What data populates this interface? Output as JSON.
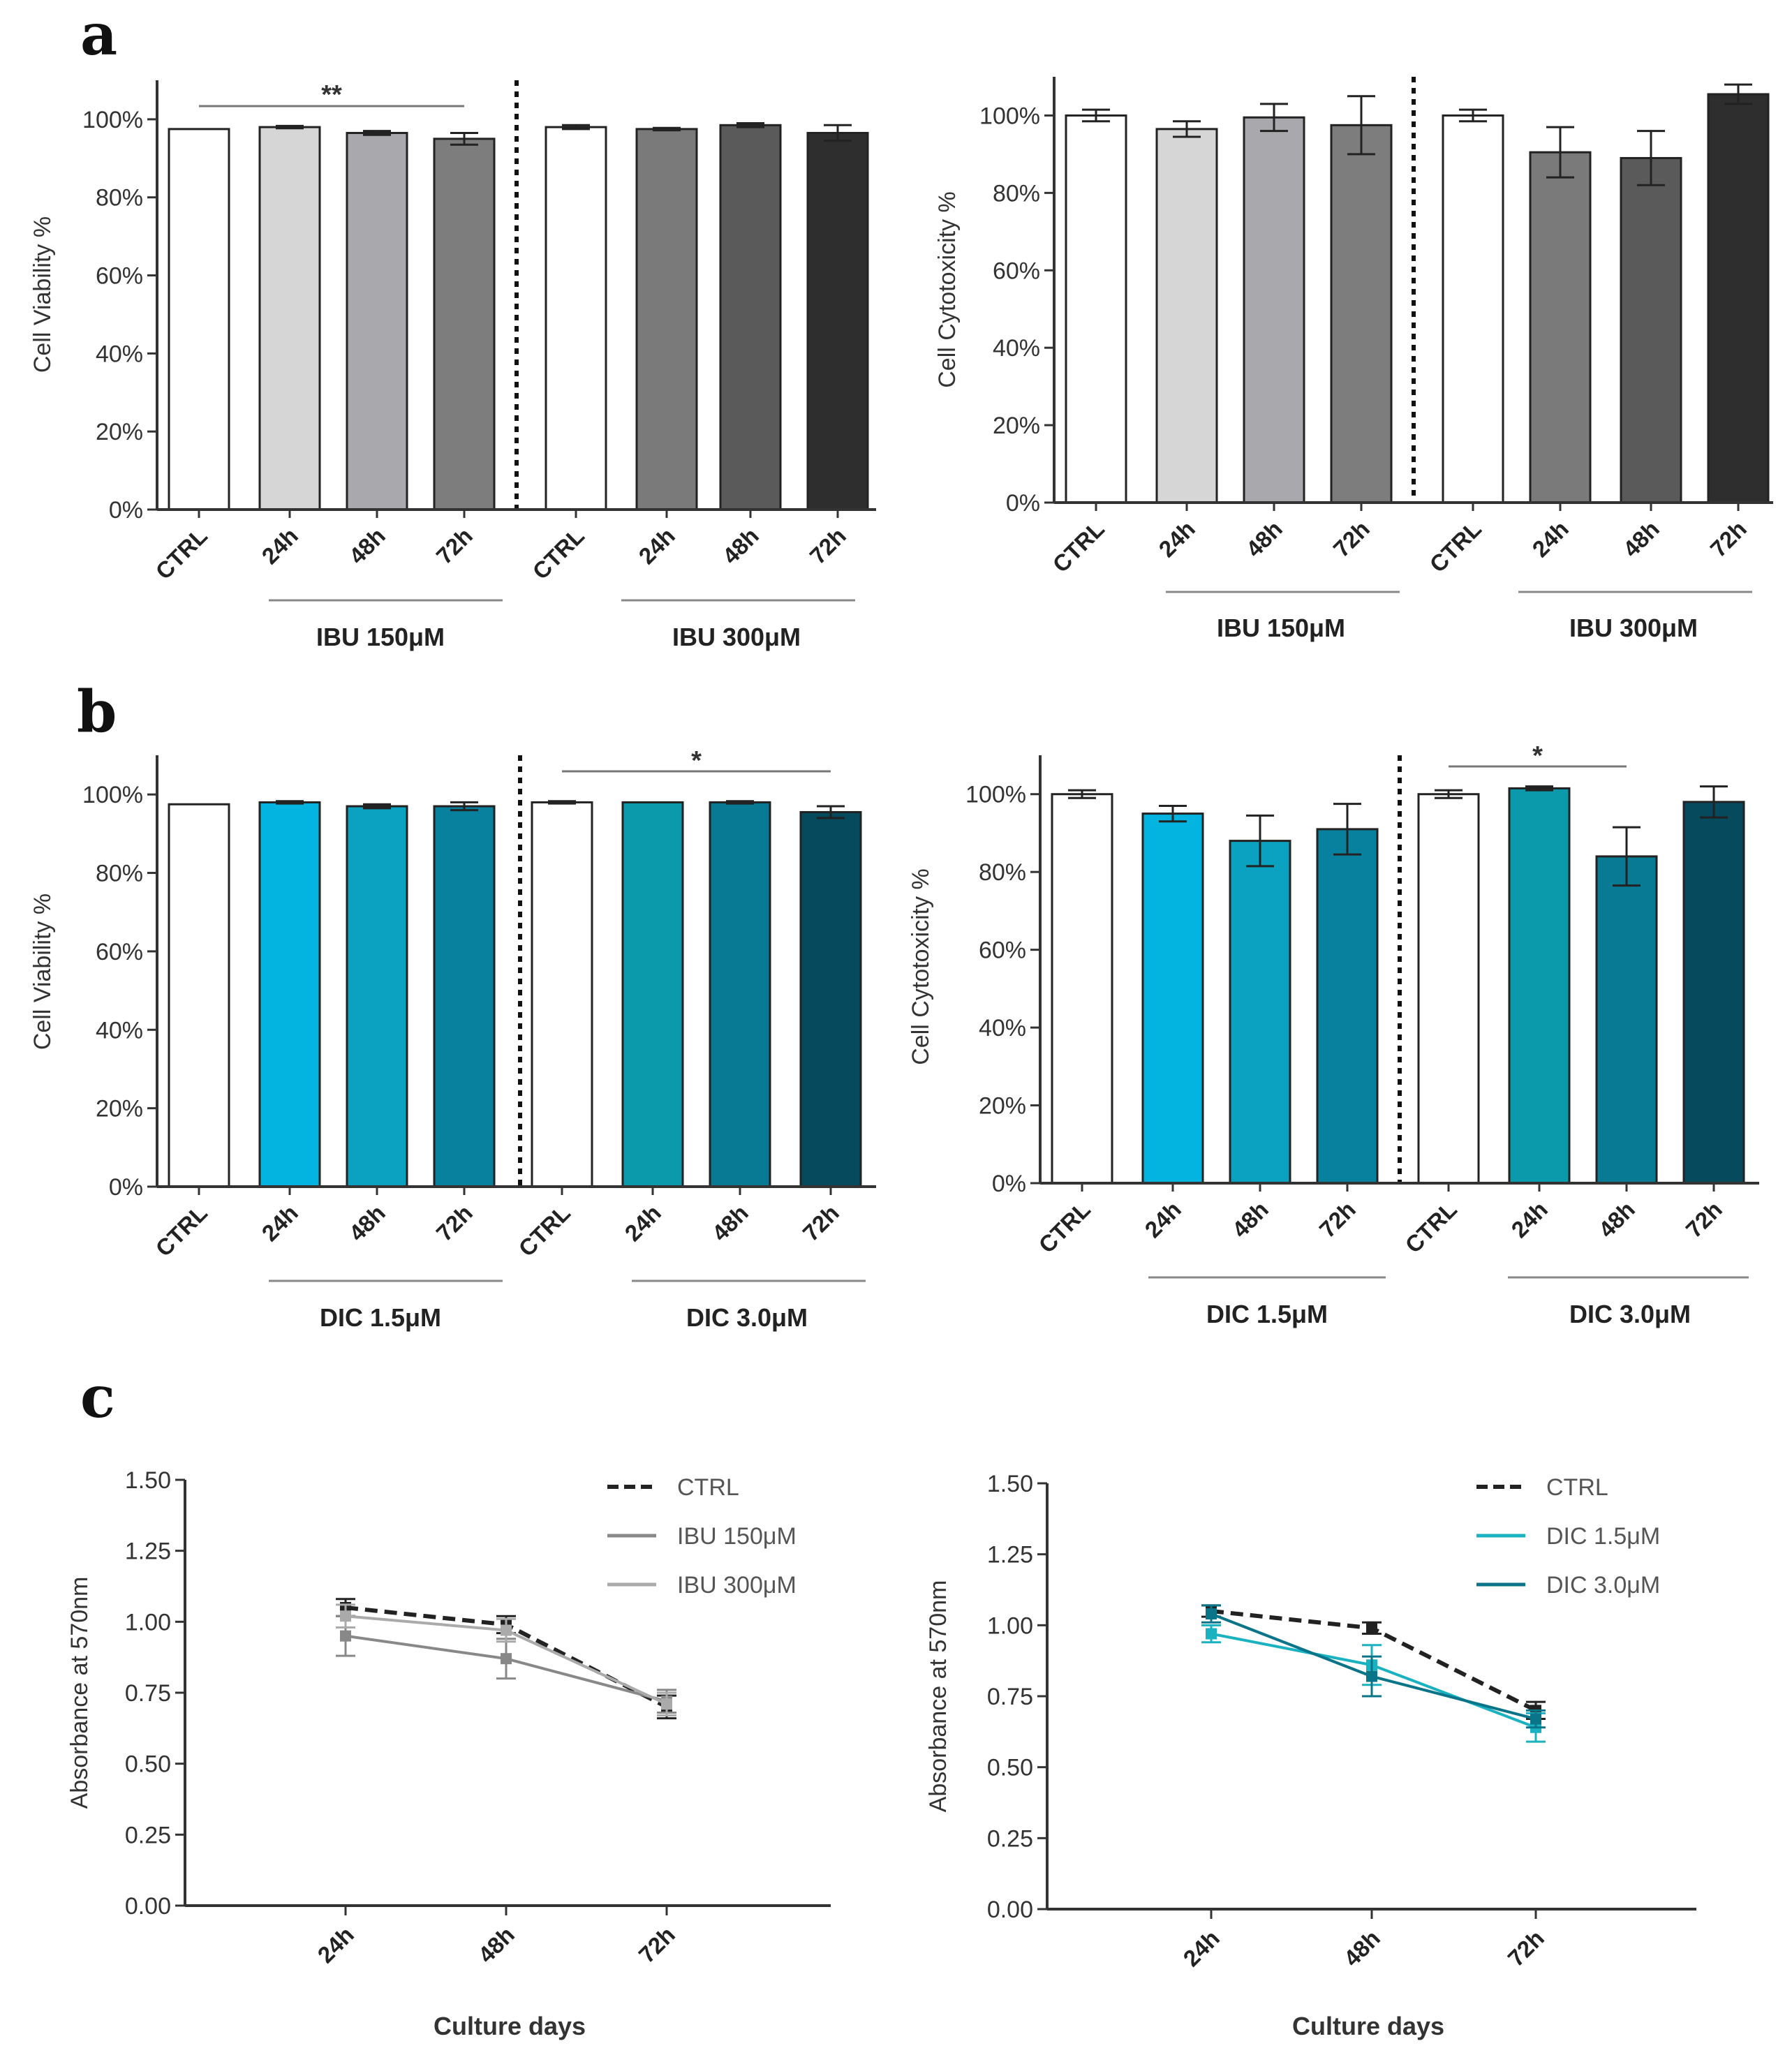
{
  "panel_labels": [
    "a",
    "b",
    "c"
  ],
  "colors": {
    "axis": "#333333",
    "white_bar": "#ffffff",
    "ibu": [
      "#d9d9d9",
      "#a7a7ab",
      "#808080",
      "#7a7a7a",
      "#5c5c5c",
      "#2b2b2b"
    ],
    "dic": [
      "#04b4e0",
      "#0aa1bf",
      "#07859f",
      "#0a9aaf",
      "#07768f",
      "#064a5e"
    ],
    "ctrl_line": "#222222",
    "ibu150_line": "#888888",
    "ibu300_line": "#aaaaaa",
    "dic15_line": "#1ab1c1",
    "dic30_line": "#0a7489"
  },
  "chart_data": [
    {
      "id": "a-viability",
      "type": "bar",
      "ylabel": "Cell Viability %",
      "yticks": [
        "0%",
        "20%",
        "40%",
        "60%",
        "80%",
        "100%"
      ],
      "ylim": [
        0,
        110
      ],
      "categories": [
        "CTRL",
        "24h",
        "48h",
        "72h",
        "CTRL",
        "24h",
        "48h",
        "72h"
      ],
      "values": [
        97.5,
        98,
        96.5,
        95,
        98,
        97.5,
        98.5,
        96.5
      ],
      "errors": [
        0,
        0.3,
        0.5,
        1.5,
        0.5,
        0.3,
        0.5,
        2
      ],
      "groups": [
        "IBU 150μM",
        "IBU 300μM"
      ],
      "significance": {
        "label": "**",
        "from": 0,
        "to": 3
      }
    },
    {
      "id": "a-cytotoxicity",
      "type": "bar",
      "ylabel": "Cell Cytotoxicity %",
      "yticks": [
        "0%",
        "20%",
        "40%",
        "60%",
        "80%",
        "100%"
      ],
      "ylim": [
        0,
        110
      ],
      "categories": [
        "CTRL",
        "24h",
        "48h",
        "72h",
        "CTRL",
        "24h",
        "48h",
        "72h"
      ],
      "values": [
        100,
        96.5,
        99.5,
        97.5,
        100,
        90.5,
        89,
        105.5
      ],
      "errors": [
        1.5,
        2,
        3.5,
        7.5,
        1.5,
        6.5,
        7,
        2.5
      ],
      "groups": [
        "IBU 150μM",
        "IBU 300μM"
      ],
      "significance": null
    },
    {
      "id": "b-viability",
      "type": "bar",
      "ylabel": "Cell Viability %",
      "yticks": [
        "0%",
        "20%",
        "40%",
        "60%",
        "80%",
        "100%"
      ],
      "ylim": [
        0,
        110
      ],
      "categories": [
        "CTRL",
        "24h",
        "48h",
        "72h",
        "CTRL",
        "24h",
        "48h",
        "72h"
      ],
      "values": [
        97.5,
        98,
        97,
        97,
        98,
        98,
        98,
        95.5
      ],
      "errors": [
        0,
        0.3,
        0.5,
        1,
        0.3,
        0,
        0.3,
        1.5
      ],
      "groups": [
        "DIC 1.5μM",
        "DIC 3.0μM"
      ],
      "significance": {
        "label": "*",
        "from": 4,
        "to": 7
      }
    },
    {
      "id": "b-cytotoxicity",
      "type": "bar",
      "ylabel": "Cell Cytotoxicity %",
      "yticks": [
        "0%",
        "20%",
        "40%",
        "60%",
        "80%",
        "100%"
      ],
      "ylim": [
        0,
        110
      ],
      "categories": [
        "CTRL",
        "24h",
        "48h",
        "72h",
        "CTRL",
        "24h",
        "48h",
        "72h"
      ],
      "values": [
        100,
        95,
        88,
        91,
        100,
        101.5,
        84,
        98
      ],
      "errors": [
        1,
        2,
        6.5,
        6.5,
        1,
        0.5,
        7.5,
        4
      ],
      "groups": [
        "DIC 1.5μM",
        "DIC 3.0μM"
      ],
      "significance": {
        "label": "*",
        "from": 4,
        "to": 6
      }
    },
    {
      "id": "c-ibu",
      "type": "line",
      "xlabel": "Culture days",
      "ylabel": "Absorbance at 570nm",
      "x": [
        "24h",
        "48h",
        "72h"
      ],
      "yticks": [
        "0.00",
        "0.25",
        "0.50",
        "0.75",
        "1.00",
        "1.25",
        "1.50"
      ],
      "ylim": [
        0,
        1.5
      ],
      "series": [
        {
          "name": "CTRL",
          "values": [
            1.05,
            0.99,
            0.7
          ],
          "errors": [
            0.03,
            0.03,
            0.04
          ],
          "dash": true
        },
        {
          "name": "IBU 150μM",
          "values": [
            0.95,
            0.87,
            0.72
          ],
          "errors": [
            0.07,
            0.07,
            0.04
          ],
          "dash": false
        },
        {
          "name": "IBU 300μM",
          "values": [
            1.02,
            0.97,
            0.71
          ],
          "errors": [
            0.04,
            0.04,
            0.04
          ],
          "dash": false
        }
      ]
    },
    {
      "id": "c-dic",
      "type": "line",
      "xlabel": "Culture days",
      "ylabel": "Absorbance at 570nm",
      "x": [
        "24h",
        "48h",
        "72h"
      ],
      "yticks": [
        "0.00",
        "0.25",
        "0.50",
        "0.75",
        "1.00",
        "1.25",
        "1.50"
      ],
      "ylim": [
        0,
        1.5
      ],
      "series": [
        {
          "name": "CTRL",
          "values": [
            1.05,
            0.99,
            0.7
          ],
          "errors": [
            0.02,
            0.02,
            0.03
          ],
          "dash": true
        },
        {
          "name": "DIC 1.5μM",
          "values": [
            0.97,
            0.86,
            0.64
          ],
          "errors": [
            0.03,
            0.07,
            0.05
          ],
          "dash": false
        },
        {
          "name": "DIC 3.0μM",
          "values": [
            1.04,
            0.82,
            0.67
          ],
          "errors": [
            0.03,
            0.07,
            0.03
          ],
          "dash": false
        }
      ]
    }
  ]
}
